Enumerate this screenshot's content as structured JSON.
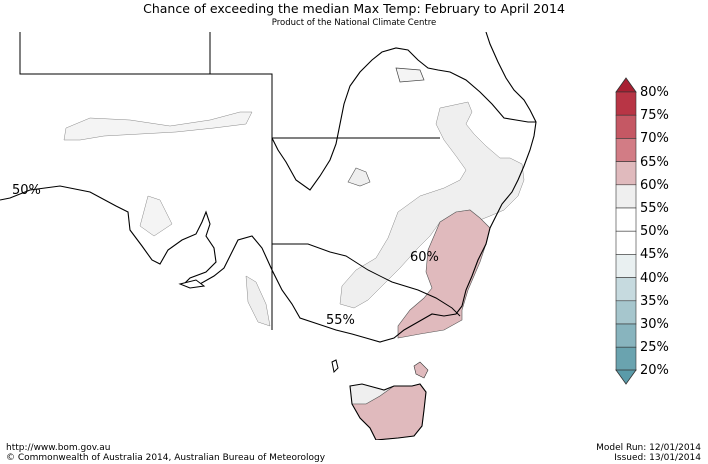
{
  "header": {
    "title": "Chance of exceeding the median Max Temp: February to April 2014",
    "subtitle": "Product of the National Climate Centre"
  },
  "map": {
    "labels": {
      "west": "50%",
      "central": "60%",
      "south": "55%"
    },
    "colors": {
      "c45_50": "#ffffff",
      "c50_55": "#ffffff",
      "c55_60": "#efefef",
      "c60_65": "#e0babd",
      "line": "#000000"
    }
  },
  "legend": {
    "labels": [
      "80%",
      "75%",
      "70%",
      "65%",
      "60%",
      "55%",
      "50%",
      "45%",
      "40%",
      "35%",
      "30%",
      "25%",
      "20%"
    ],
    "colors": [
      "#b83545",
      "#c55864",
      "#d27c85",
      "#e0babd",
      "#efefef",
      "#ffffff",
      "#ffffff",
      "#e9f0f1",
      "#c6dadf",
      "#a6c6cd",
      "#88b4be",
      "#6aa3af",
      "#5a9ba9"
    ]
  },
  "footer": {
    "url": "http://www.bom.gov.au",
    "copyright": "©  Commonwealth of Australia 2014, Australian Bureau of Meteorology",
    "model_run": "Model Run: 12/01/2014",
    "issued": "Issued: 13/01/2014"
  }
}
